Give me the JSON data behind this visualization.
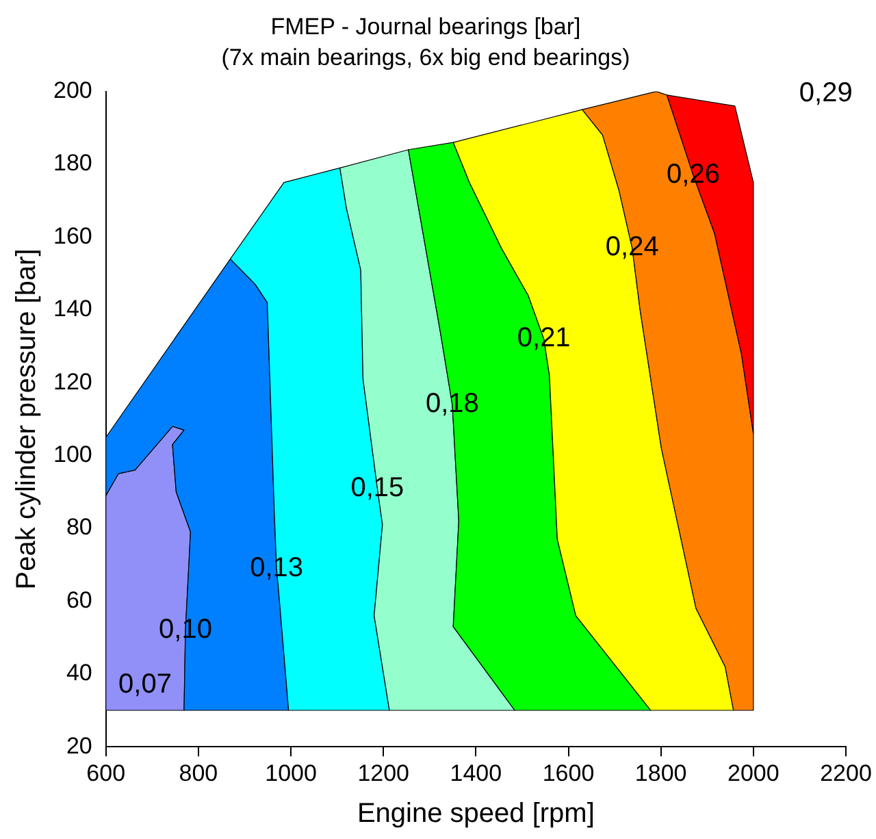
{
  "chart_data": {
    "type": "area",
    "title": "FMEP - Journal bearings [bar]",
    "subtitle": "(7x main bearings, 6x big end bearings)",
    "xlabel": "Engine speed [rpm]",
    "ylabel": "Peak cylinder pressure [bar]",
    "xlim": [
      600,
      2200
    ],
    "xticks": [
      600,
      800,
      1000,
      1200,
      1400,
      1600,
      1800,
      2000,
      2200
    ],
    "ylim": [
      20,
      200
    ],
    "yticks": [
      20,
      40,
      60,
      80,
      100,
      120,
      140,
      160,
      180,
      200
    ],
    "grid": false,
    "legend": false,
    "series": [
      {
        "color": "#9090f8",
        "x": [
          600,
          600,
          627,
          663,
          744,
          769,
          744,
          752,
          783,
          772,
          769,
          600
        ],
        "values": [
          30,
          89,
          95,
          96,
          108,
          107,
          103,
          90,
          79,
          52,
          30,
          30
        ]
      },
      {
        "color": "#0080ff",
        "x": [
          769,
          772,
          783,
          752,
          744,
          769,
          744,
          663,
          627,
          600,
          600,
          869,
          923,
          949,
          964,
          969,
          974,
          995,
          769
        ],
        "values": [
          30,
          52,
          79,
          90,
          103,
          107,
          108,
          96,
          95,
          89,
          105,
          154,
          147,
          142,
          85,
          69,
          62,
          30,
          30
        ]
      },
      {
        "color": "#00ffff",
        "x": [
          995,
          974,
          969,
          964,
          949,
          923,
          869,
          985,
          1106,
          1120,
          1151,
          1156,
          1187,
          1198,
          1180,
          1213,
          995
        ],
        "values": [
          30,
          62,
          69,
          85,
          142,
          147,
          154,
          175,
          179,
          168,
          151,
          121,
          91,
          81,
          56,
          30,
          30
        ]
      },
      {
        "color": "#94ffcc",
        "x": [
          1213,
          1180,
          1198,
          1187,
          1156,
          1151,
          1120,
          1106,
          1254,
          1323,
          1349,
          1363,
          1351,
          1484,
          1213
        ],
        "values": [
          30,
          56,
          81,
          91,
          121,
          151,
          168,
          179,
          184,
          134,
          114,
          82,
          53,
          30,
          30
        ]
      },
      {
        "color": "#00ff00",
        "x": [
          1484,
          1351,
          1363,
          1349,
          1323,
          1254,
          1351,
          1386,
          1455,
          1513,
          1547,
          1559,
          1576,
          1616,
          1778,
          1484
        ],
        "values": [
          30,
          53,
          82,
          114,
          134,
          184,
          186,
          175,
          157,
          144,
          132,
          122,
          77,
          56,
          30,
          30
        ]
      },
      {
        "color": "#ffff00",
        "x": [
          1778,
          1616,
          1576,
          1559,
          1547,
          1513,
          1455,
          1386,
          1351,
          1630,
          1674,
          1709,
          1738,
          1755,
          1801,
          1876,
          1939,
          1957,
          1778
        ],
        "values": [
          30,
          56,
          77,
          122,
          132,
          144,
          157,
          175,
          186,
          195,
          188,
          173,
          157,
          140,
          102,
          58,
          42,
          30,
          30
        ]
      },
      {
        "color": "#ff8000",
        "x": [
          1957,
          1939,
          1876,
          1801,
          1755,
          1738,
          1709,
          1674,
          1630,
          1790,
          1813,
          1870,
          1916,
          1974,
          2000,
          2000,
          1957
        ],
        "values": [
          30,
          42,
          58,
          102,
          140,
          157,
          173,
          188,
          195,
          200,
          199,
          177,
          161,
          128,
          106,
          30,
          30
        ]
      },
      {
        "color": "#ff0000",
        "x": [
          2000,
          1974,
          1916,
          1870,
          1813,
          1960,
          2000,
          2000
        ],
        "values": [
          106,
          128,
          161,
          177,
          199,
          196,
          175,
          106
        ]
      }
    ],
    "annotations": [
      "0,07",
      {
        "text": "0,10",
        "x": 772,
        "y": 52
      },
      {
        "text": "0,13",
        "x": 969,
        "y": 69
      },
      {
        "text": "0,15",
        "x": 1187,
        "y": 91
      },
      {
        "text": "0,18",
        "x": 1349,
        "y": 114
      },
      {
        "text": "0,21",
        "x": 1547,
        "y": 132
      },
      {
        "text": "0,24",
        "x": 1738,
        "y": 157
      },
      {
        "text": "0,26",
        "x": 1870,
        "y": 177
      },
      "0,29"
    ]
  }
}
